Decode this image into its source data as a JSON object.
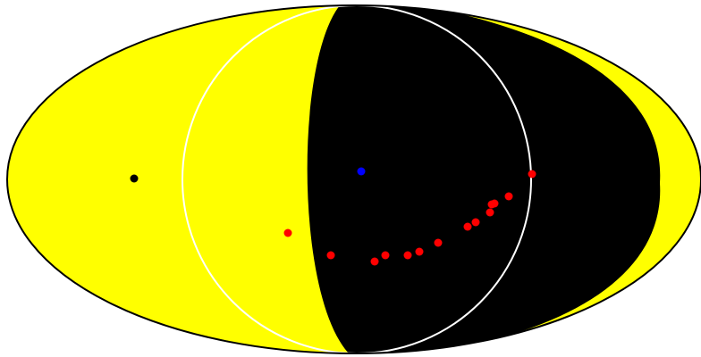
{
  "map": {
    "projection": "mollweide",
    "view_type": "all-sky",
    "background_color": "#ffffff",
    "sky_color": "#ffff00",
    "night_region_color": "#000000",
    "outline_color": "#000000",
    "meridian_circle_color": "#ffffff",
    "markers": [
      {
        "name": "black-dot",
        "color": "#000000"
      },
      {
        "name": "blue-dot",
        "color": "#0000ff"
      },
      {
        "name": "red-dot-1",
        "color": "#ff0000"
      },
      {
        "name": "red-dot-2",
        "color": "#ff0000"
      },
      {
        "name": "red-dot-3",
        "color": "#ff0000"
      },
      {
        "name": "red-dot-4",
        "color": "#ff0000"
      },
      {
        "name": "red-dot-5",
        "color": "#ff0000"
      },
      {
        "name": "red-dot-6",
        "color": "#ff0000"
      },
      {
        "name": "red-dot-7",
        "color": "#ff0000"
      },
      {
        "name": "red-dot-8",
        "color": "#ff0000"
      },
      {
        "name": "red-dot-9",
        "color": "#ff0000"
      },
      {
        "name": "red-dot-10",
        "color": "#ff0000"
      },
      {
        "name": "red-dot-11",
        "color": "#ff0000"
      },
      {
        "name": "red-dot-12",
        "color": "#ff0000"
      },
      {
        "name": "red-dot-13",
        "color": "#ff0000"
      },
      {
        "name": "red-dot-14",
        "color": "#ff0000"
      }
    ]
  }
}
